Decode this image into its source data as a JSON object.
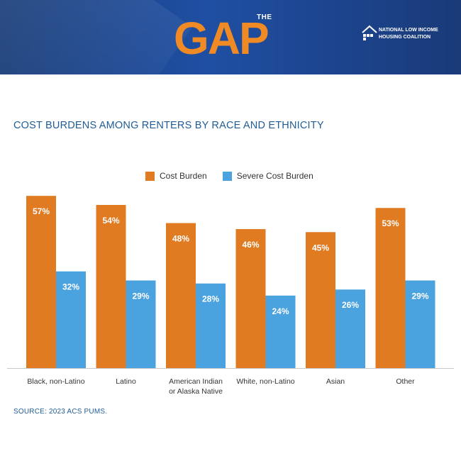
{
  "header": {
    "logo_text": "GAP",
    "logo_superscript": "THE",
    "org_line1": "NATIONAL LOW INCOME",
    "org_line2": "HOUSING COALITION"
  },
  "colors": {
    "cost_burden": "#e07b22",
    "severe_cost_burden": "#4aa3df",
    "title": "#1f5c96"
  },
  "chart_data": {
    "type": "bar",
    "title": "COST BURDENS AMONG RENTERS BY RACE AND ETHNICITY",
    "categories": [
      [
        "Black, non-Latino"
      ],
      [
        "Latino"
      ],
      [
        "American Indian",
        "or Alaska Native"
      ],
      [
        "White, non-Latino"
      ],
      [
        "Asian"
      ],
      [
        "Other"
      ]
    ],
    "series": [
      {
        "name": "Cost Burden",
        "values": [
          57,
          54,
          48,
          46,
          45,
          53
        ],
        "labels": [
          "57%",
          "54%",
          "48%",
          "46%",
          "45%",
          "53%"
        ]
      },
      {
        "name": "Severe Cost Burden",
        "values": [
          32,
          29,
          28,
          24,
          26,
          29
        ],
        "labels": [
          "32%",
          "29%",
          "28%",
          "24%",
          "26%",
          "29%"
        ]
      }
    ],
    "ylim": [
      0,
      100
    ],
    "xlabel": "",
    "ylabel": "",
    "legend": "top-center",
    "grid": false
  },
  "source": "SOURCE: 2023 ACS PUMS."
}
